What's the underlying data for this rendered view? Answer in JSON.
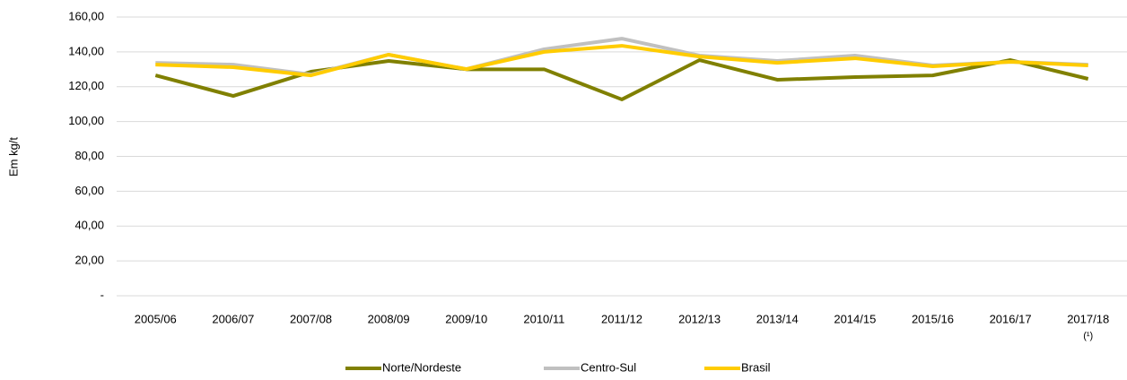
{
  "chart_data": {
    "type": "line",
    "y_label": "Em kg/t",
    "categories": [
      "2005/06",
      "2006/07",
      "2007/08",
      "2008/09",
      "2009/10",
      "2010/11",
      "2011/12",
      "2012/13",
      "2013/14",
      "2014/15",
      "2015/16",
      "2016/17",
      "2017/18"
    ],
    "category_note": "(¹)",
    "ylim": [
      0,
      160
    ],
    "yticks": [
      {
        "value": 0,
        "label": "-"
      },
      {
        "value": 20,
        "label": "20,00"
      },
      {
        "value": 40,
        "label": "40,00"
      },
      {
        "value": 60,
        "label": "60,00"
      },
      {
        "value": 80,
        "label": "80,00"
      },
      {
        "value": 100,
        "label": "100,00"
      },
      {
        "value": 120,
        "label": "120,00"
      },
      {
        "value": 140,
        "label": "140,00"
      },
      {
        "value": 160,
        "label": "160,00"
      }
    ],
    "grid": true,
    "legend": "bottom",
    "series": [
      {
        "name": "Norte/Nordeste",
        "color": "#808000",
        "values": [
          126.5,
          114.7,
          128.6,
          134.8,
          130,
          130,
          112.7,
          135.3,
          124,
          125.5,
          126.5,
          135.3,
          124.5
        ]
      },
      {
        "name": "Centro-Sul",
        "color": "#c0c0c0",
        "values": [
          133.7,
          132.7,
          127,
          138.4,
          130.1,
          141.5,
          147.6,
          137.9,
          134.8,
          137.9,
          132.2,
          134.3,
          132.7
        ]
      },
      {
        "name": "Brasil",
        "color": "#ffcc00",
        "values": [
          132.7,
          131.2,
          126.5,
          138.4,
          130.1,
          140,
          143.5,
          137.3,
          133.7,
          136.3,
          131.7,
          134.3,
          132.2
        ]
      }
    ]
  }
}
